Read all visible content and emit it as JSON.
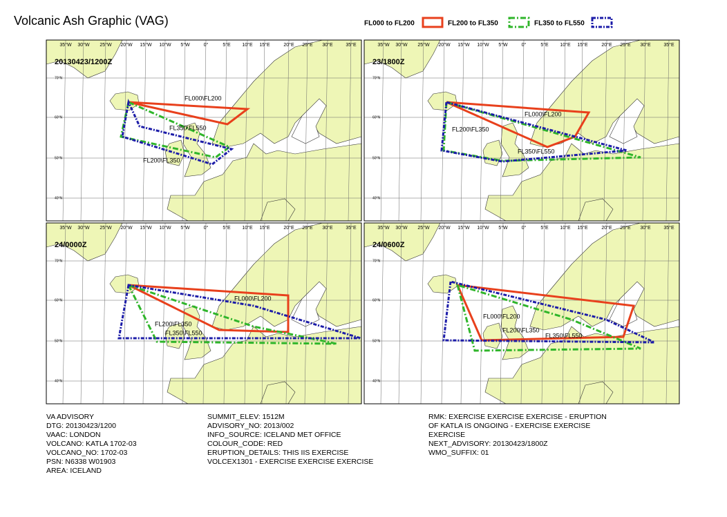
{
  "title": "Volcanic Ash Graphic (VAG)",
  "legend": [
    {
      "label": "FL000 to FL200",
      "color": "#e8401c"
    },
    {
      "label": "FL200 to FL350",
      "color": "#2fb52a"
    },
    {
      "label": "FL350 to FL550",
      "color": "#1c1ca8"
    }
  ],
  "map_labels": {
    "longitudes": [
      "35°W",
      "30°W",
      "25°W",
      "20°W",
      "15°W",
      "10°W",
      "5°W",
      "0°",
      "5°E",
      "10°E",
      "15°E",
      "20°E",
      "25°E",
      "30°E",
      "35°E"
    ],
    "latitudes": [
      "70°N",
      "60°N",
      "50°N",
      "40°N"
    ]
  },
  "panels": [
    {
      "time": "20130423/1200Z",
      "areas": [
        "FL000\\FL200",
        "FL200\\FL350",
        "FL350\\FL550"
      ]
    },
    {
      "time": "23/1800Z",
      "areas": [
        "FL000\\FL200",
        "FL200\\FL350",
        "FL350\\FL550"
      ]
    },
    {
      "time": "24/0000Z",
      "areas": [
        "FL000\\FL200",
        "FL200\\FL350",
        "FL350\\FL550"
      ]
    },
    {
      "time": "24/0600Z",
      "areas": [
        "FL000\\FL200",
        "FL200\\FL350",
        "FL350\\FL550"
      ]
    }
  ],
  "advisory": {
    "columns": [
      [
        "VA ADVISORY",
        "DTG: 20130423/1200",
        "VAAC: LONDON",
        "VOLCANO: KATLA 1702-03",
        "VOLCANO_NO: 1702-03",
        "PSN: N6338 W01903",
        "AREA: ICELAND"
      ],
      [
        "SUMMIT_ELEV: 1512M",
        "ADVISORY_NO: 2013/002",
        "INFO_SOURCE: ICELAND MET OFFICE",
        "COLOUR_CODE: RED",
        "ERUPTION_DETAILS: THIS IIS EXERCISE",
        "VOLCEX1301 - EXERCISE EXERCISE EXERCISE"
      ],
      [
        "RMK: EXERCISE EXERCISE EXERCISE - ERUPTION",
        "OF KATLA IS ONGOING - EXERCISE EXERCISE",
        "EXERCISE",
        "NEXT_ADVISORY: 20130423/1800Z",
        "WMO_SUFFIX: 01"
      ]
    ]
  }
}
